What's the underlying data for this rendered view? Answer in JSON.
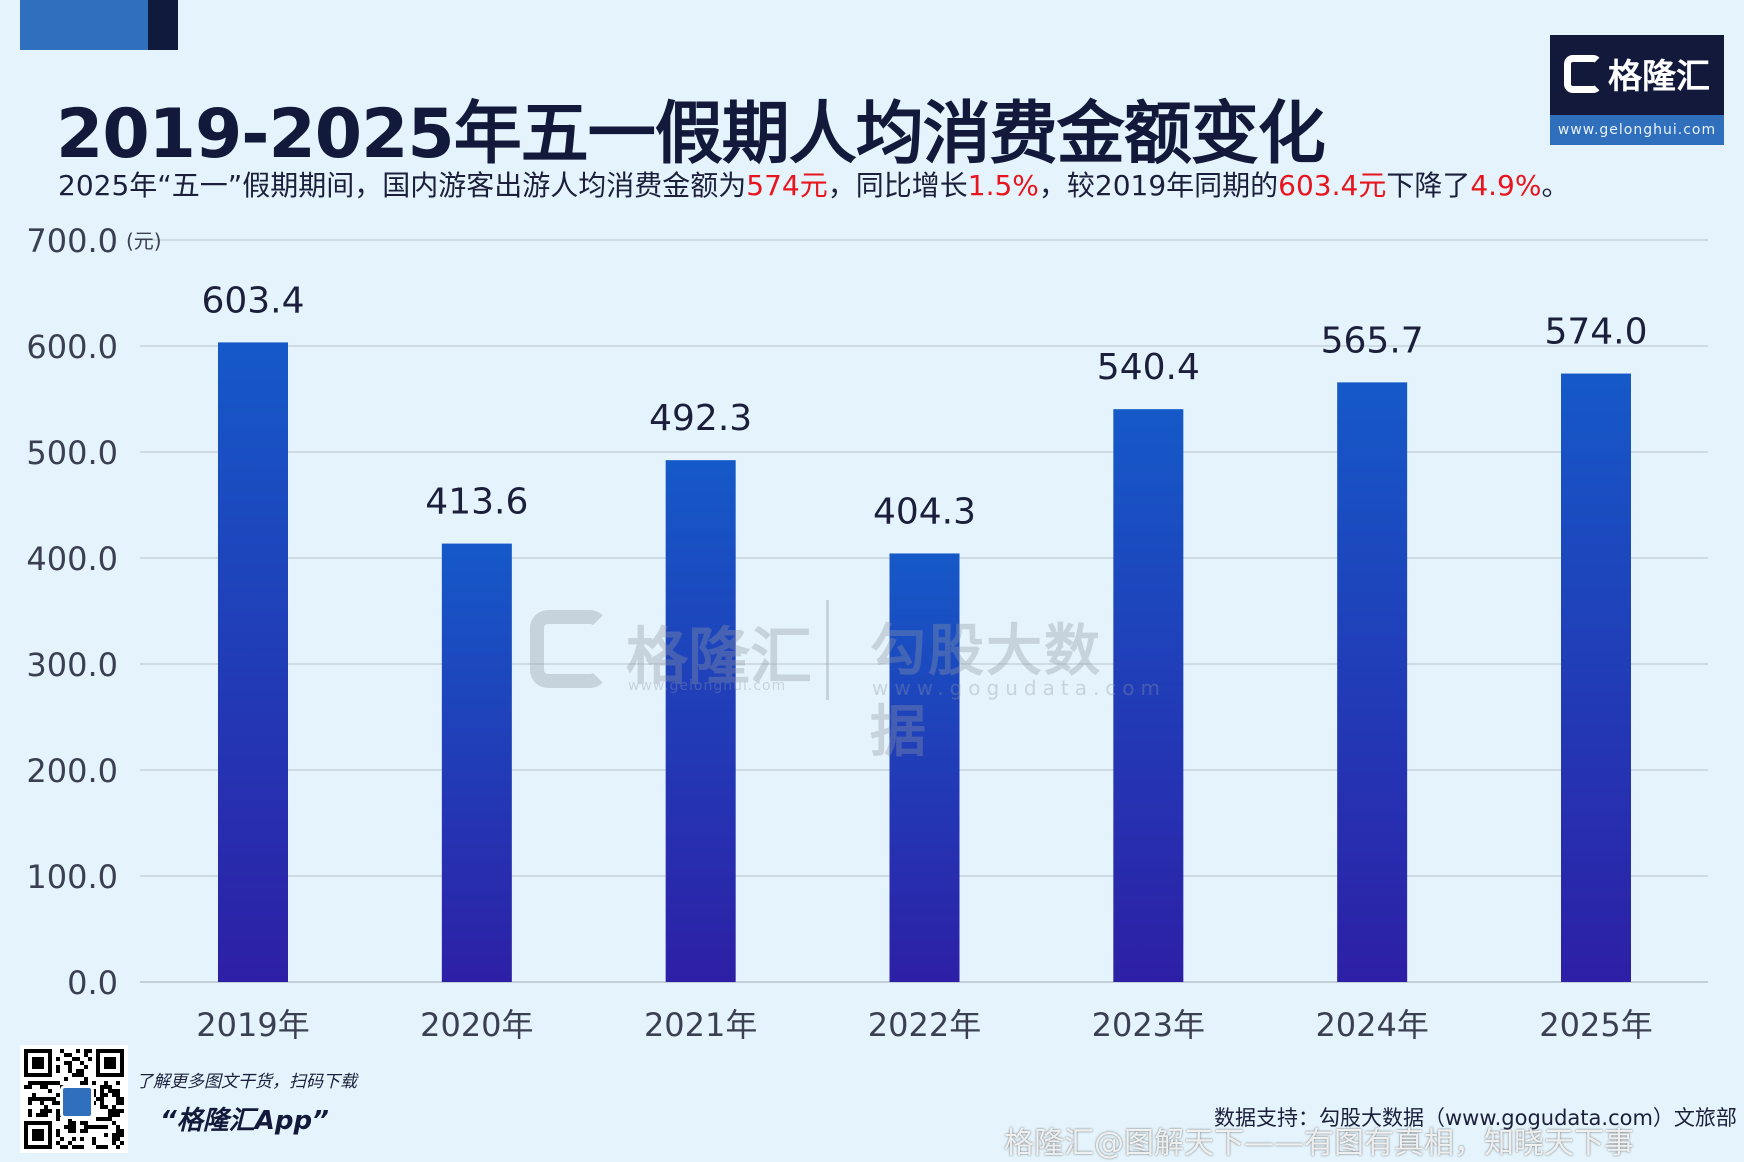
{
  "title": "2019-2025年五一假期人均消费金额变化",
  "subtitle": {
    "p1": "2025年“五一”假期期间，国内游客出游人均消费金额为",
    "h1": "574元",
    "p2": "，同比增长",
    "h2": "1.5%",
    "p3": "，较2019年同期的",
    "h3": "603.4元",
    "p4": "下降了",
    "h4": "4.9%",
    "p5": "。"
  },
  "brand": {
    "name": "格隆汇",
    "url": "www.gelonghui.com"
  },
  "watermark": {
    "left_name": "格隆汇",
    "left_url": "www.gelonghui.com",
    "right_name": "勾股大数据",
    "right_url": "www.gogudata.com"
  },
  "footer": {
    "promo_line": "了解更多图文干货，扫码下载",
    "promo_app": "“格隆汇App”",
    "source": "数据支持：勾股大数据（www.gogudata.com）文旅部",
    "overlay": "格隆汇@图解天下——有图有真相，知晓天下事"
  },
  "colors": {
    "bar_top": "#1559c8",
    "bar_bottom": "#2d1fa6",
    "highlight": "#e8141e",
    "background": "#e5f4fc"
  },
  "chart_data": {
    "type": "bar",
    "categories": [
      "2019年",
      "2020年",
      "2021年",
      "2022年",
      "2023年",
      "2024年",
      "2025年"
    ],
    "values": [
      603.4,
      413.6,
      492.3,
      404.3,
      540.4,
      565.7,
      574.0
    ],
    "value_labels": [
      "603.4",
      "413.6",
      "492.3",
      "404.3",
      "540.4",
      "565.7",
      "574.0"
    ],
    "unit": "(元)",
    "ylim": [
      0,
      700
    ],
    "yticks": [
      "0.0",
      "100.0",
      "200.0",
      "300.0",
      "400.0",
      "500.0",
      "600.0",
      "700.0"
    ],
    "grid": true
  }
}
